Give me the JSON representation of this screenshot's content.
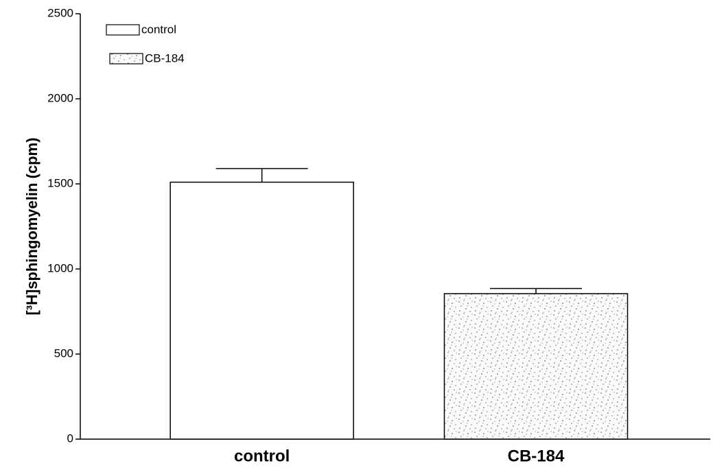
{
  "chart_data": {
    "type": "bar",
    "ylabel": "[³H]sphingomyelin (cpm)",
    "categories": [
      "control",
      "CB-184"
    ],
    "series": [
      {
        "name": "control",
        "color": "#ffffff",
        "pattern": "none",
        "values": [
          1510,
          null
        ],
        "errors": [
          80,
          null
        ]
      },
      {
        "name": "CB-184",
        "color": "#ffffff",
        "pattern": "stipple",
        "values": [
          null,
          855
        ],
        "errors": [
          null,
          30
        ]
      }
    ],
    "ylim": [
      0,
      2500
    ],
    "yticks": [
      0,
      500,
      1000,
      1500,
      2000,
      2500
    ],
    "legend": "upper left"
  }
}
